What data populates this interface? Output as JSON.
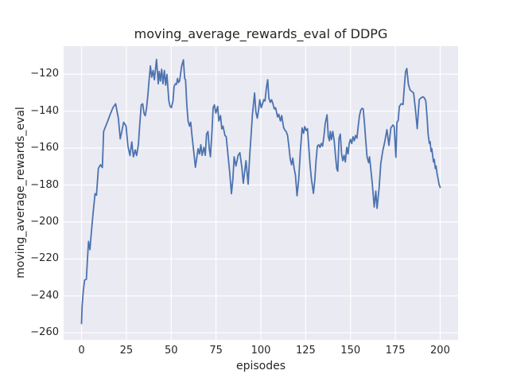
{
  "figure": {
    "title": "moving_average_rewards_eval of DDPG",
    "xlabel": "episodes",
    "ylabel": "moving_average_rewards_eval",
    "background_color": "#ffffff",
    "plot_background_color": "#eaeaf2",
    "grid_color": "#ffffff",
    "line_color": "#4c72b0",
    "text_color": "#262626"
  },
  "chart_data": {
    "type": "line",
    "title": "moving_average_rewards_eval of DDPG",
    "xlabel": "episodes",
    "ylabel": "moving_average_rewards_eval",
    "grid": true,
    "legend": false,
    "xlim": [
      -10,
      210
    ],
    "ylim": [
      -263.8,
      -104.8
    ],
    "x_tick_values": [
      0,
      25,
      50,
      75,
      100,
      125,
      150,
      175,
      200
    ],
    "x_tick_labels": [
      "0",
      "25",
      "50",
      "75",
      "100",
      "125",
      "150",
      "175",
      "200"
    ],
    "y_tick_values": [
      -120,
      -140,
      -160,
      -180,
      -200,
      -220,
      -240,
      -260
    ],
    "y_tick_labels": [
      "−120",
      "−140",
      "−160",
      "−180",
      "−200",
      "−220",
      "−240",
      "−260"
    ],
    "series": [
      {
        "name": "moving_average_rewards_eval",
        "color": "#4c72b0",
        "points": [
          [
            0,
            -255
          ],
          [
            0.3,
            -246
          ],
          [
            1,
            -237
          ],
          [
            1.7,
            -231.5
          ],
          [
            2.7,
            -231
          ],
          [
            3.2,
            -221.5
          ],
          [
            3.9,
            -210.5
          ],
          [
            4.7,
            -215
          ],
          [
            5.2,
            -208.5
          ],
          [
            5.7,
            -203
          ],
          [
            6.4,
            -195.5
          ],
          [
            7.5,
            -184.7
          ],
          [
            8.3,
            -185.5
          ],
          [
            9.4,
            -171
          ],
          [
            10.6,
            -169
          ],
          [
            11.6,
            -170.5
          ],
          [
            12.3,
            -151
          ],
          [
            13.1,
            -149
          ],
          [
            14.6,
            -145.3
          ],
          [
            16,
            -141.7
          ],
          [
            17.5,
            -138.1
          ],
          [
            19,
            -136
          ],
          [
            20.5,
            -143.8
          ],
          [
            21.6,
            -155
          ],
          [
            23.5,
            -146
          ],
          [
            24.8,
            -148
          ],
          [
            25.9,
            -159
          ],
          [
            27,
            -164
          ],
          [
            28,
            -156.7
          ],
          [
            28.9,
            -164.7
          ],
          [
            29.9,
            -161
          ],
          [
            30.7,
            -164
          ],
          [
            31.7,
            -158.2
          ],
          [
            32.5,
            -146.7
          ],
          [
            33.3,
            -136.6
          ],
          [
            34.1,
            -136
          ],
          [
            34.8,
            -141
          ],
          [
            35.5,
            -142.5
          ],
          [
            36.3,
            -138
          ],
          [
            37.1,
            -130
          ],
          [
            37.7,
            -123
          ],
          [
            38.4,
            -115.5
          ],
          [
            39.1,
            -121.6
          ],
          [
            39.9,
            -118
          ],
          [
            40.6,
            -123
          ],
          [
            41.8,
            -112
          ],
          [
            42.8,
            -125.2
          ],
          [
            43.3,
            -118.5
          ],
          [
            44,
            -123.7
          ],
          [
            44.7,
            -117.3
          ],
          [
            45.4,
            -125.2
          ],
          [
            46.2,
            -118
          ],
          [
            46.9,
            -125.9
          ],
          [
            47.6,
            -120.1
          ],
          [
            48.7,
            -134.5
          ],
          [
            49.4,
            -137.4
          ],
          [
            50.1,
            -138.1
          ],
          [
            51,
            -134.5
          ],
          [
            51.6,
            -126.6
          ],
          [
            52.3,
            -125.2
          ],
          [
            53,
            -125.5
          ],
          [
            53.5,
            -122.3
          ],
          [
            54.1,
            -124.5
          ],
          [
            54.7,
            -123.5
          ],
          [
            55.8,
            -115.8
          ],
          [
            56.8,
            -112.2
          ],
          [
            57.5,
            -122.3
          ],
          [
            58,
            -123
          ],
          [
            58.7,
            -136.6
          ],
          [
            59.4,
            -145.3
          ],
          [
            60.2,
            -148.1
          ],
          [
            60.9,
            -146
          ],
          [
            61.6,
            -153.2
          ],
          [
            62.4,
            -160.3
          ],
          [
            63.5,
            -170.4
          ],
          [
            65,
            -160.3
          ],
          [
            65.8,
            -163.2
          ],
          [
            66.5,
            -158.2
          ],
          [
            67.2,
            -163.9
          ],
          [
            68.2,
            -159.6
          ],
          [
            69,
            -163.9
          ],
          [
            69.7,
            -152.4
          ],
          [
            70.5,
            -151
          ],
          [
            71.2,
            -160.3
          ],
          [
            71.9,
            -164.7
          ],
          [
            72.7,
            -151
          ],
          [
            73.4,
            -138.1
          ],
          [
            74.1,
            -136.6
          ],
          [
            74.9,
            -141
          ],
          [
            75.9,
            -137.4
          ],
          [
            76.6,
            -145.3
          ],
          [
            77.5,
            -142.4
          ],
          [
            78.2,
            -149.6
          ],
          [
            78.9,
            -148.1
          ],
          [
            80,
            -153.2
          ],
          [
            80.7,
            -153.9
          ],
          [
            81.7,
            -163.9
          ],
          [
            82.6,
            -173
          ],
          [
            83.6,
            -184.7
          ],
          [
            84.4,
            -177
          ],
          [
            85.1,
            -164.7
          ],
          [
            86.1,
            -169.7
          ],
          [
            87.3,
            -163.9
          ],
          [
            88.3,
            -162.5
          ],
          [
            89.4,
            -170.4
          ],
          [
            90.2,
            -179
          ],
          [
            91.7,
            -166.8
          ],
          [
            92.9,
            -179.5
          ],
          [
            93.8,
            -163.9
          ],
          [
            94.6,
            -152.4
          ],
          [
            95.3,
            -141.7
          ],
          [
            96.5,
            -130.2
          ],
          [
            97.2,
            -140.3
          ],
          [
            98,
            -143.8
          ],
          [
            98.7,
            -139.5
          ],
          [
            99.4,
            -133.8
          ],
          [
            100.2,
            -138.1
          ],
          [
            101.1,
            -135.5
          ],
          [
            101.6,
            -133.8
          ],
          [
            102.3,
            -134.5
          ],
          [
            103.1,
            -127.3
          ],
          [
            103.8,
            -123
          ],
          [
            104.5,
            -133.1
          ],
          [
            105.3,
            -135.2
          ],
          [
            106,
            -133.8
          ],
          [
            106.7,
            -135.9
          ],
          [
            107.5,
            -138.8
          ],
          [
            108.2,
            -138.1
          ],
          [
            109.3,
            -143.1
          ],
          [
            110,
            -141.7
          ],
          [
            110.9,
            -145.3
          ],
          [
            111.6,
            -142.4
          ],
          [
            112.7,
            -148.9
          ],
          [
            113.4,
            -150.3
          ],
          [
            114.1,
            -151
          ],
          [
            114.9,
            -153.2
          ],
          [
            115.6,
            -158.9
          ],
          [
            116.4,
            -166.1
          ],
          [
            117.1,
            -169
          ],
          [
            117.8,
            -165.4
          ],
          [
            118.6,
            -171.1
          ],
          [
            119.3,
            -174.7
          ],
          [
            120.2,
            -185.8
          ],
          [
            121.1,
            -176.8
          ],
          [
            122,
            -162
          ],
          [
            123,
            -149
          ],
          [
            123.8,
            -152
          ],
          [
            124.5,
            -148.3
          ],
          [
            125.3,
            -150.5
          ],
          [
            126,
            -149.5
          ],
          [
            126.8,
            -160.3
          ],
          [
            127.5,
            -169.7
          ],
          [
            128.2,
            -176.9
          ],
          [
            129.3,
            -184.5
          ],
          [
            130.1,
            -176.9
          ],
          [
            130.8,
            -166.8
          ],
          [
            131.5,
            -159
          ],
          [
            132.3,
            -158.2
          ],
          [
            133,
            -159.6
          ],
          [
            133.7,
            -157.5
          ],
          [
            134.4,
            -158.9
          ],
          [
            135.2,
            -153.2
          ],
          [
            135.9,
            -146.7
          ],
          [
            136.9,
            -142
          ],
          [
            137.6,
            -153.9
          ],
          [
            138.3,
            -156
          ],
          [
            138.7,
            -151
          ],
          [
            139.4,
            -155.3
          ],
          [
            140.1,
            -151
          ],
          [
            140.9,
            -156
          ],
          [
            141.6,
            -163.9
          ],
          [
            142.3,
            -171.1
          ],
          [
            142.9,
            -172.5
          ],
          [
            143.6,
            -154.6
          ],
          [
            144.3,
            -152.4
          ],
          [
            145,
            -163.2
          ],
          [
            145.7,
            -166.8
          ],
          [
            146.4,
            -163.9
          ],
          [
            147.1,
            -167.5
          ],
          [
            147.9,
            -159.6
          ],
          [
            148.6,
            -163.2
          ],
          [
            149.3,
            -157.5
          ],
          [
            150,
            -155.3
          ],
          [
            150.7,
            -157.5
          ],
          [
            151.4,
            -153.9
          ],
          [
            152.1,
            -156
          ],
          [
            152.8,
            -153.2
          ],
          [
            153.6,
            -154.6
          ],
          [
            154.3,
            -148.1
          ],
          [
            155,
            -142.4
          ],
          [
            155.7,
            -139.5
          ],
          [
            156.4,
            -138.5
          ],
          [
            157.1,
            -138.8
          ],
          [
            157.8,
            -146.7
          ],
          [
            158.5,
            -156
          ],
          [
            159.2,
            -164.7
          ],
          [
            160.1,
            -167.9
          ],
          [
            160.6,
            -164.7
          ],
          [
            161.3,
            -171.1
          ],
          [
            162.2,
            -179.7
          ],
          [
            163.2,
            -191.9
          ],
          [
            164.1,
            -183.3
          ],
          [
            164.8,
            -192.6
          ],
          [
            165.9,
            -182
          ],
          [
            166.9,
            -168.3
          ],
          [
            168,
            -161.4
          ],
          [
            169,
            -157
          ],
          [
            170.3,
            -150
          ],
          [
            171.4,
            -158.5
          ],
          [
            172.5,
            -149
          ],
          [
            173.7,
            -147.5
          ],
          [
            174.4,
            -148.5
          ],
          [
            175.3,
            -165
          ],
          [
            175.9,
            -146
          ],
          [
            176.6,
            -145
          ],
          [
            177.2,
            -137.5
          ],
          [
            178.3,
            -136
          ],
          [
            179.3,
            -136.4
          ],
          [
            179.8,
            -129.5
          ],
          [
            180.7,
            -118.7
          ],
          [
            181.4,
            -116.9
          ],
          [
            182.3,
            -125.5
          ],
          [
            183.2,
            -128.5
          ],
          [
            185.2,
            -130.2
          ],
          [
            186.4,
            -141
          ],
          [
            187.2,
            -149.5
          ],
          [
            188.3,
            -133.8
          ],
          [
            189.3,
            -132.8
          ],
          [
            190.3,
            -132.2
          ],
          [
            191.2,
            -132.8
          ],
          [
            192,
            -134.5
          ],
          [
            192.8,
            -144.5
          ],
          [
            193.3,
            -152.4
          ],
          [
            194,
            -157.5
          ],
          [
            194.4,
            -156.5
          ],
          [
            194.9,
            -161.8
          ],
          [
            195.3,
            -160.3
          ],
          [
            195.8,
            -163.9
          ],
          [
            196.3,
            -167.5
          ],
          [
            196.7,
            -166.1
          ],
          [
            197.3,
            -171.1
          ],
          [
            197.7,
            -169.7
          ],
          [
            198.3,
            -174
          ],
          [
            198.9,
            -177
          ],
          [
            199.4,
            -179.7
          ],
          [
            200,
            -181.3
          ]
        ]
      }
    ]
  }
}
